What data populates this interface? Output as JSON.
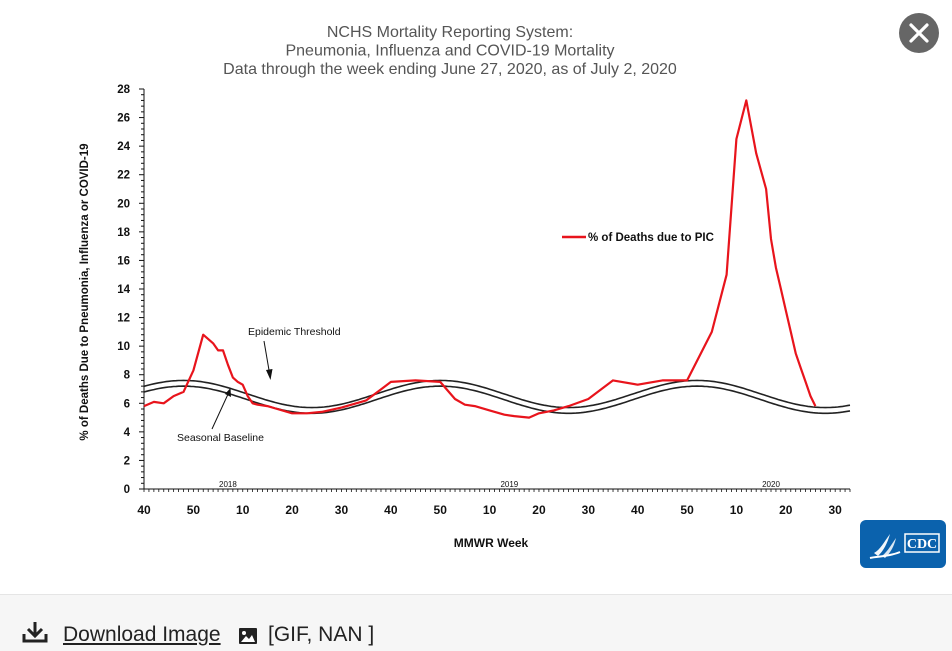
{
  "chart_data": {
    "type": "line",
    "title_lines": [
      "NCHS Mortality Reporting System:",
      "Pneumonia, Influenza and COVID-19 Mortality",
      "Data through the week ending June 27, 2020, as of July 2, 2020"
    ],
    "xlabel": "MMWR Week",
    "ylabel": "% of Deaths Due to Pneumonia, Influenza or COVID-19",
    "ylim": [
      0,
      28
    ],
    "yticks": [
      "0",
      "2",
      "4",
      "6",
      "8",
      "10",
      "12",
      "14",
      "16",
      "18",
      "20",
      "22",
      "24",
      "26",
      "28"
    ],
    "xticks": [
      "40",
      "50",
      "10",
      "20",
      "30",
      "40",
      "50",
      "10",
      "20",
      "30",
      "40",
      "50",
      "10",
      "20",
      "30"
    ],
    "year_labels": [
      "2018",
      "2019",
      "2020"
    ],
    "legend": "% of Deaths due to PIC",
    "legend_position": "upper-right",
    "colors": {
      "pic": "#e8141c",
      "baseline": "#222222"
    },
    "annotations": {
      "threshold": "Epidemic Threshold",
      "baseline": "Seasonal Baseline"
    },
    "series": [
      {
        "name": "% of Deaths due to PIC",
        "x": [
          0,
          2,
          4,
          6,
          8,
          10,
          12,
          14,
          15,
          16,
          17,
          18,
          19,
          20,
          21,
          22,
          23,
          25,
          27,
          30,
          33,
          36,
          40,
          45,
          50,
          55,
          60,
          63,
          65,
          67,
          70,
          73,
          75,
          78,
          80,
          83,
          86,
          90,
          95,
          100,
          105,
          110,
          115,
          118,
          120,
          122,
          124,
          126,
          127,
          128,
          129,
          130,
          131,
          132,
          133,
          134,
          135,
          136,
          138,
          140,
          142,
          143
        ],
        "y": [
          5.8,
          6.1,
          6.0,
          6.5,
          6.8,
          8.3,
          10.8,
          10.2,
          9.7,
          9.7,
          8.7,
          7.8,
          7.5,
          7.3,
          6.5,
          6.0,
          5.9,
          5.8,
          5.6,
          5.3,
          5.3,
          5.4,
          5.7,
          6.2,
          7.5,
          7.6,
          7.5,
          6.3,
          5.9,
          5.8,
          5.5,
          5.2,
          5.1,
          5.0,
          5.3,
          5.5,
          5.8,
          6.3,
          7.6,
          7.3,
          7.6,
          7.6,
          11.0,
          15.0,
          24.5,
          27.2,
          23.5,
          21.0,
          17.5,
          15.5,
          14.0,
          12.5,
          11.0,
          9.5,
          8.5,
          7.5,
          6.5,
          5.8,
          null,
          null,
          null,
          null
        ]
      },
      {
        "name": "Epidemic Threshold",
        "x": [
          0,
          143
        ],
        "wave": {
          "mean": 6.65,
          "amplitude": 0.95,
          "period_weeks": 52,
          "peak_week": 8
        }
      },
      {
        "name": "Seasonal Baseline",
        "x": [
          0,
          143
        ],
        "wave": {
          "mean": 6.25,
          "amplitude": 0.95,
          "period_weeks": 52,
          "peak_week": 8
        }
      }
    ]
  },
  "modal": {
    "close_label": "×"
  },
  "footer": {
    "download_label": "Download Image",
    "format_label": "[GIF, NAN ]"
  },
  "logo_text": "CDC"
}
